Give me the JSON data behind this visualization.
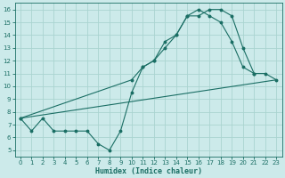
{
  "xlabel": "Humidex (Indice chaleur)",
  "bg_color": "#cceaea",
  "grid_color": "#aad4d0",
  "line_color": "#1a6e64",
  "tick_color": "#1a6e64",
  "xlim": [
    -0.5,
    23.5
  ],
  "ylim": [
    4.5,
    16.5
  ],
  "xticks": [
    0,
    1,
    2,
    3,
    4,
    5,
    6,
    7,
    8,
    9,
    10,
    11,
    12,
    13,
    14,
    15,
    16,
    17,
    18,
    19,
    20,
    21,
    22,
    23
  ],
  "yticks": [
    5,
    6,
    7,
    8,
    9,
    10,
    11,
    12,
    13,
    14,
    15,
    16
  ],
  "line1_x": [
    0,
    1,
    2,
    3,
    4,
    5,
    6,
    7,
    8,
    9,
    10,
    11,
    12,
    13,
    14,
    15,
    16,
    17,
    18,
    19,
    20,
    21
  ],
  "line1_y": [
    7.5,
    6.5,
    7.5,
    6.5,
    6.5,
    6.5,
    6.5,
    5.5,
    5.0,
    6.5,
    9.5,
    11.5,
    12.0,
    13.0,
    14.0,
    15.5,
    15.5,
    16.0,
    16.0,
    15.5,
    13.0,
    11.0
  ],
  "line2_x": [
    0,
    10,
    11,
    12,
    13,
    14,
    15,
    16,
    17,
    18,
    19,
    20,
    21,
    22,
    23
  ],
  "line2_y": [
    7.5,
    10.5,
    11.5,
    12.0,
    13.5,
    14.0,
    15.5,
    16.0,
    15.5,
    15.0,
    13.5,
    11.5,
    11.0,
    11.0,
    10.5
  ],
  "line3_x": [
    0,
    23
  ],
  "line3_y": [
    7.5,
    10.5
  ]
}
